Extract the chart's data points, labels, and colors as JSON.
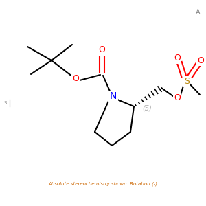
{
  "bottom_text": "Absolute stereochemistry shown. Rotation (-)",
  "bg_color": "#ffffff",
  "atom_colors": {
    "N": "#0000ff",
    "O": "#ff0000",
    "S": "#b8860b",
    "C": "#000000"
  },
  "s_label": "(S)",
  "s_label_color": "#aaaaaa",
  "lw": 1.5
}
